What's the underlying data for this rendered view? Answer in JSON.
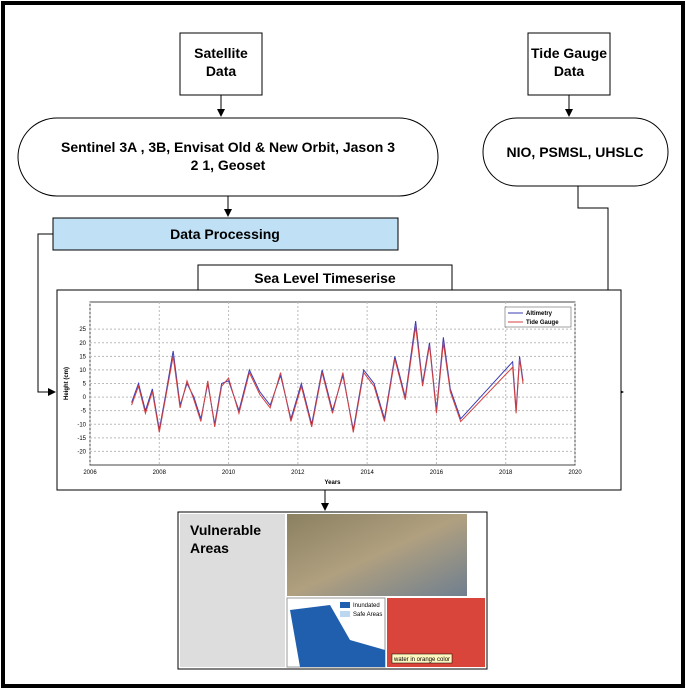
{
  "nodes": {
    "satellite": {
      "label": "Satellite\nData"
    },
    "missions": {
      "label": "Sentinel 3A , 3B, Envisat Old & New Orbit, Jason 3\n2 1, Geoset"
    },
    "tide_gauge": {
      "label": "Tide Gauge\nData"
    },
    "tide_sources": {
      "label": "NIO, PSMSL, UHSLC"
    },
    "processing": {
      "label": "Data Processing"
    },
    "timeseries": {
      "label": "Sea Level Timeserise"
    },
    "vulnerable": {
      "label": "Vulnerable\nAreas",
      "legend": [
        "Inundated",
        "Safe Areas"
      ],
      "caption": "water in orange color"
    }
  },
  "timeseries_chart": {
    "type": "line",
    "xlabel": "Years",
    "ylabel": "Height (cm)",
    "x": [
      2007.2,
      2007.4,
      2007.6,
      2007.8,
      2008.0,
      2008.2,
      2008.4,
      2008.6,
      2008.8,
      2009.0,
      2009.2,
      2009.4,
      2009.6,
      2009.8,
      2010.0,
      2010.3,
      2010.6,
      2010.9,
      2011.2,
      2011.5,
      2011.8,
      2012.1,
      2012.4,
      2012.7,
      2013.0,
      2013.3,
      2013.6,
      2013.9,
      2014.2,
      2014.5,
      2014.8,
      2015.1,
      2015.4,
      2015.6,
      2015.8,
      2016.0,
      2016.2,
      2016.4,
      2016.7,
      2018.2,
      2018.3,
      2018.4,
      2018.5
    ],
    "series": [
      {
        "name": "Altimetry",
        "color": "#3b3bb5",
        "values": [
          -2,
          5,
          -5,
          3,
          -12,
          2,
          17,
          -3,
          5,
          0,
          -8,
          5,
          -10,
          5,
          6,
          -5,
          10,
          2,
          -3,
          8,
          -8,
          5,
          -10,
          10,
          -5,
          8,
          -12,
          10,
          5,
          -8,
          15,
          0,
          28,
          5,
          20,
          -5,
          22,
          3,
          -8,
          13,
          -5,
          15,
          6
        ]
      },
      {
        "name": "Tide Gauge",
        "color": "#d04040",
        "values": [
          -3,
          4,
          -6,
          2,
          -13,
          1,
          15,
          -4,
          6,
          -1,
          -9,
          6,
          -11,
          4,
          7,
          -6,
          9,
          1,
          -4,
          9,
          -9,
          4,
          -11,
          9,
          -6,
          9,
          -13,
          9,
          4,
          -9,
          14,
          -1,
          26,
          4,
          19,
          -6,
          20,
          2,
          -9,
          11,
          -6,
          14,
          5
        ]
      }
    ],
    "xlim": [
      2006,
      2020
    ],
    "xticks": [
      2006,
      2008,
      2010,
      2012,
      2014,
      2016,
      2018,
      2020
    ],
    "ylim": [
      -25,
      35
    ],
    "yticks": [
      -20,
      -15,
      -10,
      -5,
      0,
      5,
      10,
      15,
      20,
      25
    ],
    "grid": true,
    "legend": "upper right"
  }
}
